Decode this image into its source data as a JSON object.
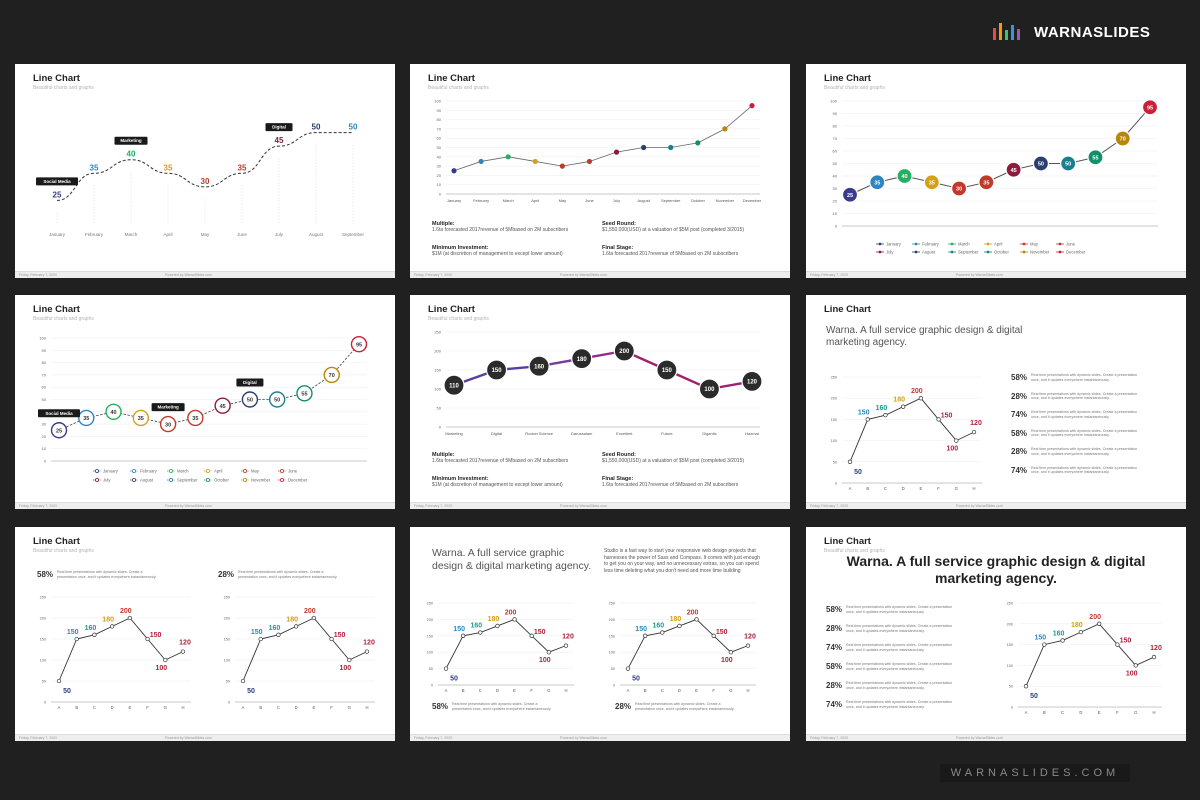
{
  "brand": {
    "name": "WARNASLIDES",
    "logo_colors": [
      "#e74c3c",
      "#f39c12",
      "#2ecc71",
      "#3498db",
      "#9b59b6",
      "#1abc9c"
    ]
  },
  "footer_brand": "WARNASLIDES.COM",
  "common": {
    "title": "Line Chart",
    "subtitle": "Beautiful charts and graphs",
    "footer_date": "Friday, February 7, 2020",
    "footer_mid": "Powered by WarnaSlides.com",
    "agency": "Warna. A full service graphic design & digital marketing agency."
  },
  "slides": {
    "s2": {
      "info": [
        {
          "label": "Multiple:",
          "text": "1.6ta forecasted 2017revenue of 5Mbased on 2M subscribers"
        },
        {
          "label": "Seed Round:",
          "text": "$1,550,000(USD) at a valuation of $5M post (completed 3/2015)"
        },
        {
          "label": "Minimum Investment:",
          "text": "$1M (at discretion of management to except lower amount)"
        },
        {
          "label": "Final Stage:",
          "text": "1.6ta forecasted 2017revenue of 5Mbased on 2M subscribers"
        }
      ]
    },
    "s5": {
      "info": [
        {
          "label": "Multiple:",
          "text": "1.6ta forecasted 2017revenue of 5Mbased on 2M subscribers"
        },
        {
          "label": "Seed Round:",
          "text": "$1,550,000(USD) at a valuation of $5M post (completed 3/2015)"
        },
        {
          "label": "Minimum Investment:",
          "text": "$1M (at discretion of management to except lower amount)"
        },
        {
          "label": "Final Stage:",
          "text": "1.6ta forecasted 2017revenue of 5Mbased on 2M subscribers"
        }
      ]
    },
    "s6": {
      "stats": [
        {
          "pct": "58%",
          "text": "Real time presentations with dynamic slides. Create a presentation once, and it updates everywhere instantaneously."
        },
        {
          "pct": "28%",
          "text": "Real time presentations with dynamic slides. Create a presentation once, and it updates everywhere instantaneously."
        },
        {
          "pct": "74%",
          "text": "Real time presentations with dynamic slides. Create a presentation once, and it updates everywhere instantaneously."
        },
        {
          "pct": "58%",
          "text": "Real time presentations with dynamic slides. Create a presentation once, and it updates everywhere instantaneously."
        },
        {
          "pct": "28%",
          "text": "Real time presentations with dynamic slides. Create a presentation once, and it updates everywhere instantaneously."
        },
        {
          "pct": "74%",
          "text": "Real time presentations with dynamic slides. Create a presentation once, and it updates everywhere instantaneously."
        }
      ]
    },
    "s7": {
      "stats": [
        {
          "pct": "58%",
          "text": "Real time presentations with dynamic slides. Create a presentation once, and it updates everywhere instantaneously."
        },
        {
          "pct": "28%",
          "text": "Real time presentations with dynamic slides. Create a presentation once, and it updates everywhere instantaneously."
        }
      ]
    },
    "s8": {
      "para": "Studio is a fast way to start your responsive web design projects that harnesses the power of Sass and Compass. It comes with just enough to get you on your way, and no unnecessary extras, so you can spend less time deleting what you don't need and more time building",
      "stats": [
        {
          "pct": "58%",
          "text": "Real time presentations with dynamic slides. Create a presentation once, and it updates everywhere instantaneously."
        },
        {
          "pct": "28%",
          "text": "Real time presentations with dynamic slides. Create a presentation once, and it updates everywhere instantaneously."
        }
      ]
    },
    "s9": {
      "stats": [
        {
          "pct": "58%",
          "text": "Real time presentations with dynamic slides. Create a presentation once, and it updates everywhere instantaneously."
        },
        {
          "pct": "28%",
          "text": "Real time presentations with dynamic slides. Create a presentation once, and it updates everywhere instantaneously."
        },
        {
          "pct": "74%",
          "text": "Real time presentations with dynamic slides. Create a presentation once, and it updates everywhere instantaneously."
        },
        {
          "pct": "58%",
          "text": "Real time presentations with dynamic slides. Create a presentation once, and it updates everywhere instantaneously."
        },
        {
          "pct": "28%",
          "text": "Real time presentations with dynamic slides. Create a presentation once, and it updates everywhere instantaneously."
        },
        {
          "pct": "74%",
          "text": "Real time presentations with dynamic slides. Create a presentation once, and it updates everywhere instantaneously."
        }
      ]
    }
  },
  "chart_data": [
    {
      "slide": 1,
      "type": "line",
      "categories": [
        "January",
        "February",
        "March",
        "April",
        "May",
        "June",
        "July",
        "August",
        "September"
      ],
      "values": [
        25,
        35,
        40,
        35,
        30,
        35,
        45,
        50,
        50
      ],
      "point_colors": [
        "#3b3b8c",
        "#2e86c1",
        "#27ae60",
        "#d4a017",
        "#c0392b",
        "#c0392b",
        "#8e1b3c",
        "#2c3e70",
        "#2e86c1"
      ],
      "callouts": [
        {
          "index": 0,
          "text": "Social Media"
        },
        {
          "index": 2,
          "text": "Marketing"
        },
        {
          "index": 6,
          "text": "Digital"
        }
      ],
      "line_style": "dashed",
      "axes": false
    },
    {
      "slide": 2,
      "type": "line",
      "categories": [
        "January",
        "February",
        "March",
        "April",
        "May",
        "June",
        "July",
        "August",
        "September",
        "October",
        "November",
        "December"
      ],
      "values": [
        25,
        35,
        40,
        35,
        30,
        35,
        45,
        50,
        50,
        55,
        70,
        95
      ],
      "point_colors": [
        "#3b3b8c",
        "#2e86c1",
        "#27ae60",
        "#d4a017",
        "#c0392b",
        "#c0392b",
        "#8e1b3c",
        "#2c3e70",
        "#1a7f8e",
        "#0f8f6a",
        "#b8860b",
        "#cc1f3a"
      ],
      "ylim": [
        0,
        100
      ],
      "yticks": [
        0,
        10,
        20,
        30,
        40,
        50,
        60,
        70,
        80,
        90,
        100
      ],
      "grid": true,
      "data_labels": false
    },
    {
      "slide": 3,
      "type": "line",
      "categories": [
        "January",
        "February",
        "March",
        "April",
        "May",
        "June",
        "July",
        "August",
        "September",
        "October",
        "November",
        "December"
      ],
      "values": [
        25,
        35,
        40,
        35,
        30,
        35,
        45,
        50,
        50,
        55,
        70,
        95
      ],
      "point_colors": [
        "#3b3b8c",
        "#2e86c1",
        "#27ae60",
        "#d4a017",
        "#c0392b",
        "#c0392b",
        "#8e1b3c",
        "#2c3e70",
        "#1a7f8e",
        "#0f8f6a",
        "#b8860b",
        "#cc1f3a"
      ],
      "ylim": [
        0,
        100
      ],
      "yticks": [
        0,
        10,
        20,
        30,
        40,
        50,
        60,
        70,
        80,
        90,
        100
      ],
      "grid": true,
      "marker_style": "filled-label",
      "legend": [
        "January",
        "February",
        "March",
        "April",
        "May",
        "June",
        "July",
        "August",
        "September",
        "October",
        "November",
        "December"
      ]
    },
    {
      "slide": 4,
      "type": "line",
      "categories": [
        "January",
        "February",
        "March",
        "April",
        "May",
        "June",
        "July",
        "August",
        "September",
        "October",
        "November",
        "December"
      ],
      "values": [
        25,
        35,
        40,
        35,
        30,
        35,
        45,
        50,
        50,
        55,
        70,
        95
      ],
      "point_colors": [
        "#3b3b8c",
        "#2e86c1",
        "#27ae60",
        "#d4a017",
        "#c0392b",
        "#c0392b",
        "#8e1b3c",
        "#2c3e70",
        "#1a7f8e",
        "#0f8f6a",
        "#b8860b",
        "#cc1f3a"
      ],
      "ylim": [
        0,
        100
      ],
      "yticks": [
        0,
        10,
        20,
        30,
        40,
        50,
        60,
        70,
        80,
        90,
        100
      ],
      "grid": true,
      "marker_style": "ring-label",
      "callouts": [
        {
          "index": 0,
          "text": "Social Media"
        },
        {
          "index": 4,
          "text": "Marketing"
        },
        {
          "index": 7,
          "text": "Digital"
        }
      ],
      "legend": [
        "January",
        "February",
        "March",
        "April",
        "May",
        "June",
        "July",
        "August",
        "September",
        "October",
        "November",
        "December"
      ]
    },
    {
      "slide": 5,
      "type": "line",
      "categories": [
        "Marketing",
        "Digital",
        "Rocket Science",
        "Darussalam",
        "Excellent",
        "Future",
        "Gigantic",
        "Hazmat"
      ],
      "values": [
        110,
        150,
        160,
        180,
        200,
        150,
        100,
        120
      ],
      "ylim": [
        0,
        250
      ],
      "yticks": [
        0,
        50,
        100,
        150,
        200,
        250
      ],
      "grid": true,
      "marker_style": "dark-label",
      "segment_colors": [
        "#5a3e9e",
        "#5a3e9e",
        "#7a3a9a",
        "#8e2c8a",
        "#a0206f",
        "#a0206f",
        "#a0206f"
      ]
    },
    {
      "slide": 6,
      "type": "line",
      "categories": [
        "A",
        "B",
        "C",
        "D",
        "E",
        "F",
        "G",
        "H"
      ],
      "values": [
        50,
        150,
        160,
        180,
        200,
        150,
        100,
        120
      ],
      "label_colors": [
        "#2c3e80",
        "#2e86c1",
        "#1a9a8e",
        "#d4a017",
        "#c0392b",
        "#b0203c",
        "#b0203c",
        "#b0203c"
      ],
      "ylim": [
        0,
        250
      ],
      "yticks": [
        0,
        50,
        100,
        150,
        200,
        250
      ],
      "grid": true
    },
    {
      "slide": 7,
      "type": "line",
      "panels": 2,
      "categories": [
        "A",
        "B",
        "C",
        "D",
        "E",
        "F",
        "G",
        "H"
      ],
      "values": [
        50,
        150,
        160,
        180,
        200,
        150,
        100,
        120
      ],
      "label_colors": [
        "#2c3e80",
        "#2e86c1",
        "#1a9a8e",
        "#d4a017",
        "#c0392b",
        "#b0203c",
        "#b0203c",
        "#b0203c"
      ],
      "ylim": [
        0,
        250
      ],
      "yticks": [
        0,
        50,
        100,
        150,
        200,
        250
      ],
      "grid": true
    },
    {
      "slide": 8,
      "type": "line",
      "panels": 2,
      "categories": [
        "A",
        "B",
        "C",
        "D",
        "E",
        "F",
        "G",
        "H"
      ],
      "values": [
        50,
        150,
        160,
        180,
        200,
        150,
        100,
        120
      ],
      "label_colors": [
        "#2c3e80",
        "#2e86c1",
        "#1a9a8e",
        "#d4a017",
        "#c0392b",
        "#b0203c",
        "#b0203c",
        "#b0203c"
      ],
      "ylim": [
        0,
        250
      ],
      "yticks": [
        0,
        50,
        100,
        150,
        200,
        250
      ],
      "grid": true
    },
    {
      "slide": 9,
      "type": "line",
      "categories": [
        "A",
        "B",
        "C",
        "D",
        "E",
        "F",
        "G",
        "H"
      ],
      "values": [
        50,
        150,
        160,
        180,
        200,
        150,
        100,
        120
      ],
      "label_colors": [
        "#2c3e80",
        "#2e86c1",
        "#1a9a8e",
        "#d4a017",
        "#c0392b",
        "#b0203c",
        "#b0203c",
        "#b0203c"
      ],
      "ylim": [
        0,
        250
      ],
      "yticks": [
        0,
        50,
        100,
        150,
        200,
        250
      ],
      "grid": true
    }
  ]
}
